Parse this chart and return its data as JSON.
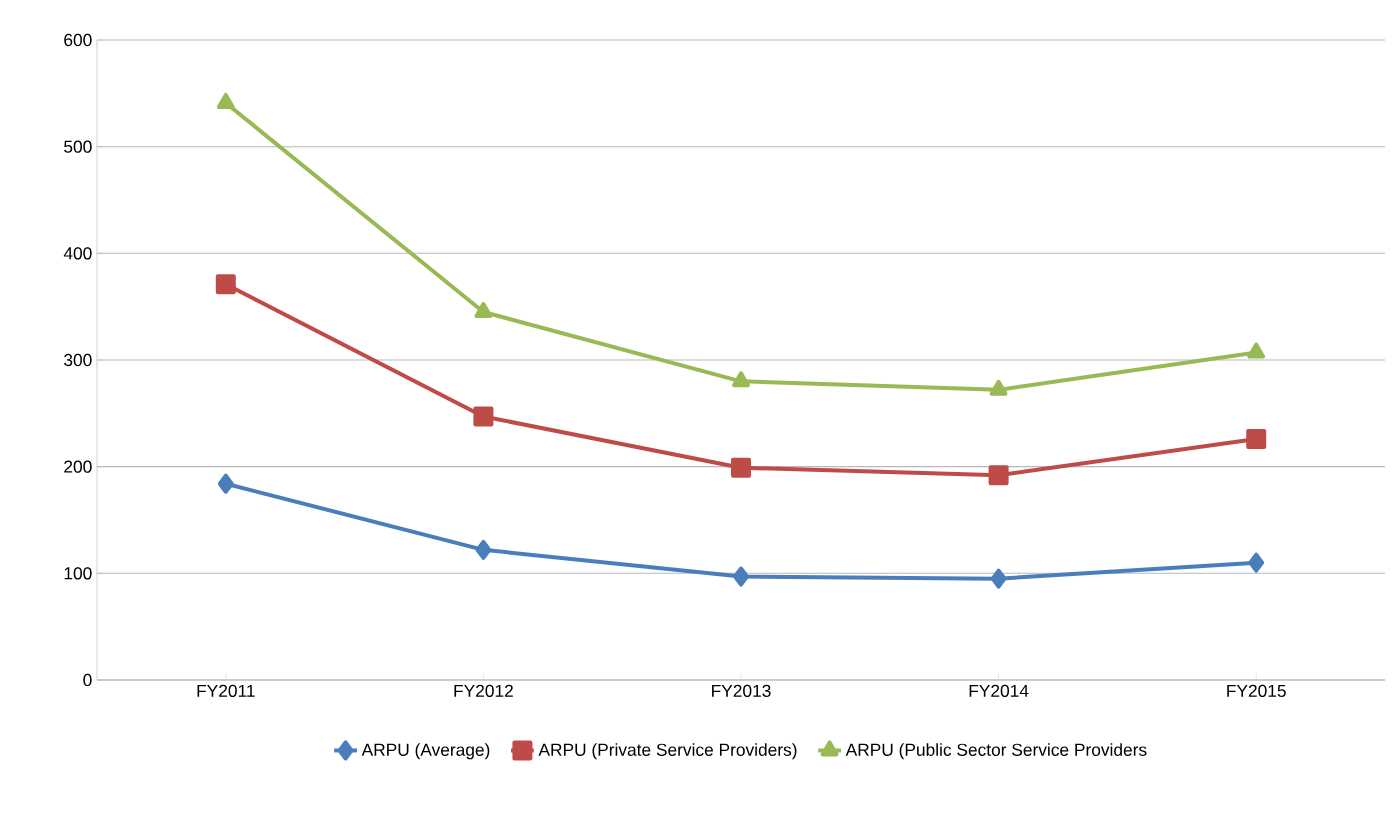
{
  "chart_data": {
    "type": "line",
    "categories": [
      "FY2011",
      "FY2012",
      "FY2013",
      "FY2014",
      "FY2015"
    ],
    "series": [
      {
        "name": "ARPU (Average)",
        "color": "#4a7ebb",
        "marker": "diamond",
        "values": [
          184,
          122,
          97,
          95,
          110
        ]
      },
      {
        "name": "ARPU (Private Service Providers)",
        "color": "#be4b48",
        "marker": "square",
        "values": [
          371,
          247,
          199,
          192,
          226
        ]
      },
      {
        "name": "ARPU (Public Sector Service Providers",
        "color": "#98b954",
        "marker": "triangle",
        "values": [
          541,
          345,
          280,
          272,
          307
        ]
      }
    ],
    "ylim": [
      0,
      600
    ],
    "yticks": [
      0,
      100,
      200,
      300,
      400,
      500,
      600
    ],
    "grid": "y",
    "legend": "bottom",
    "line_style": "solid"
  }
}
